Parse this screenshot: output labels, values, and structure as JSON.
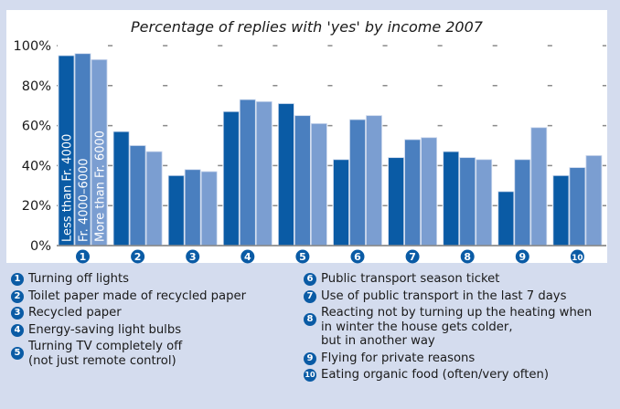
{
  "chart_data": {
    "type": "bar",
    "title": "Percentage of replies with 'yes' by income 2007",
    "xlabel": "",
    "ylabel": "",
    "ylim": [
      0,
      100
    ],
    "yticks": [
      "0%",
      "20%",
      "40%",
      "60%",
      "80%",
      "100%"
    ],
    "grid": true,
    "categories": [
      "1",
      "2",
      "3",
      "4",
      "5",
      "6",
      "7",
      "8",
      "9",
      "10"
    ],
    "series": [
      {
        "name": "Less than Fr. 4000",
        "color": "#0a5ba5",
        "values": [
          95,
          57,
          35,
          67,
          71,
          43,
          44,
          47,
          27,
          35
        ]
      },
      {
        "name": "Fr. 4000–6000",
        "color": "#4a7fbf",
        "values": [
          96,
          50,
          38,
          73,
          65,
          63,
          53,
          44,
          43,
          39
        ]
      },
      {
        "name": "More than Fr. 6000",
        "color": "#7b9ed1",
        "values": [
          93,
          47,
          37,
          72,
          61,
          65,
          54,
          43,
          59,
          45
        ]
      }
    ],
    "legend_placement": "inside-first-group"
  },
  "legend": {
    "items": [
      {
        "num": "1",
        "lines": [
          "Turning off lights"
        ]
      },
      {
        "num": "2",
        "lines": [
          "Toilet paper made of recycled paper"
        ]
      },
      {
        "num": "3",
        "lines": [
          "Recycled paper"
        ]
      },
      {
        "num": "4",
        "lines": [
          "Energy-saving light bulbs"
        ]
      },
      {
        "num": "5",
        "lines": [
          "Turning TV completely off",
          "(not just remote control)"
        ]
      },
      {
        "num": "6",
        "lines": [
          "Public transport season ticket"
        ]
      },
      {
        "num": "7",
        "lines": [
          "Use of public transport in the last 7 days"
        ]
      },
      {
        "num": "8",
        "lines": [
          "Reacting not by turning up the heating when",
          "in winter the house gets colder,",
          "but in another way"
        ]
      },
      {
        "num": "9",
        "lines": [
          "Flying for private reasons"
        ]
      },
      {
        "num": "10",
        "lines": [
          "Eating organic food (often/very often)"
        ]
      }
    ]
  }
}
